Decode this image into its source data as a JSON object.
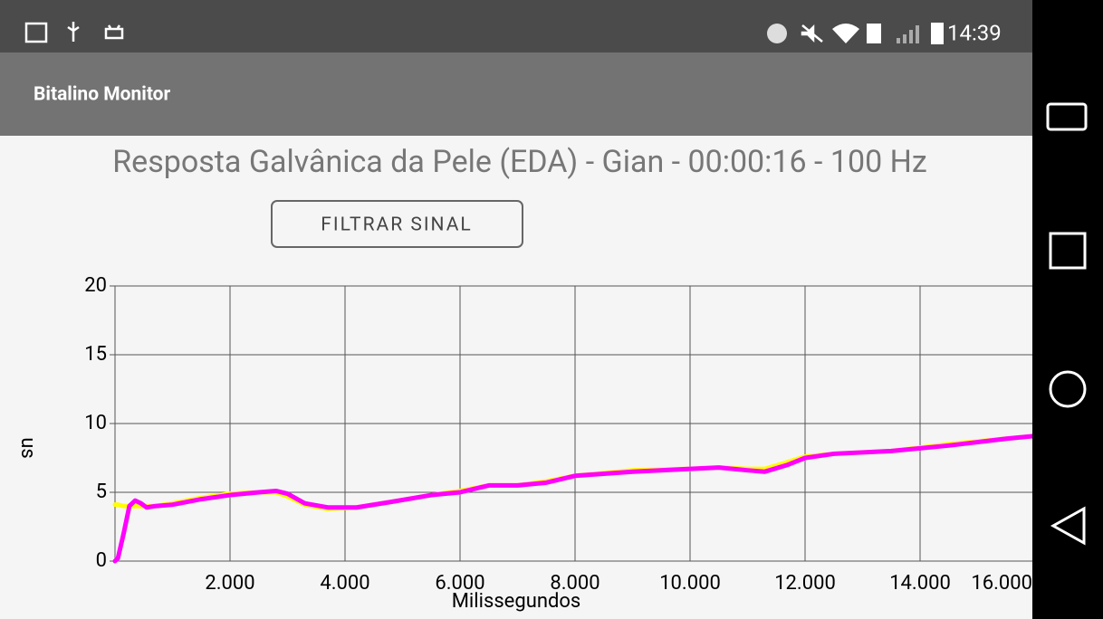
{
  "status_bar": {
    "time": "14:39"
  },
  "app_bar": {
    "title": "Bitalino Monitor"
  },
  "button": {
    "label": "FILTRAR SINAL"
  },
  "chart_data": {
    "type": "line",
    "title": "Resposta Galvânica da Pele (EDA) - Gian - 00:00:16 - 100 Hz",
    "xlabel": "Milissegundos",
    "ylabel": "us",
    "x": [
      0,
      50,
      150,
      250,
      350,
      450,
      550,
      700,
      1000,
      1500,
      2000,
      2500,
      2800,
      3000,
      3300,
      3700,
      4200,
      4800,
      5500,
      6000,
      6500,
      7000,
      7500,
      8000,
      9000,
      10000,
      10500,
      11000,
      11300,
      11700,
      12000,
      12500,
      13500,
      14500,
      15500,
      16000
    ],
    "series": [
      {
        "color": "#ffff00",
        "values": [
          4.1,
          4.1,
          4.0,
          4.0,
          4.0,
          4.0,
          4.0,
          4.0,
          4.2,
          4.6,
          4.9,
          5.0,
          5.0,
          4.7,
          4.1,
          3.8,
          3.9,
          4.3,
          4.8,
          5.1,
          5.5,
          5.5,
          5.8,
          6.2,
          6.6,
          6.7,
          6.8,
          6.7,
          6.7,
          7.2,
          7.6,
          7.8,
          8.0,
          8.5,
          8.9,
          9.1
        ]
      },
      {
        "color": "#ff00ff",
        "values": [
          0,
          0.2,
          2,
          4,
          4.4,
          4.2,
          3.9,
          4.0,
          4.1,
          4.5,
          4.8,
          5.0,
          5.1,
          4.9,
          4.2,
          3.9,
          3.9,
          4.3,
          4.8,
          5.0,
          5.5,
          5.5,
          5.7,
          6.2,
          6.5,
          6.7,
          6.8,
          6.6,
          6.5,
          7.0,
          7.5,
          7.8,
          8.0,
          8.4,
          8.9,
          9.1
        ]
      }
    ],
    "xlim": [
      0,
      16000
    ],
    "xticks": [
      {
        "value": 2000,
        "label": "2.000"
      },
      {
        "value": 4000,
        "label": "4.000"
      },
      {
        "value": 6000,
        "label": "6.000"
      },
      {
        "value": 8000,
        "label": "8.000"
      },
      {
        "value": 10000,
        "label": "10.000"
      },
      {
        "value": 12000,
        "label": "12.000"
      },
      {
        "value": 14000,
        "label": "14.000"
      },
      {
        "value": 16000,
        "label": "16.000"
      }
    ],
    "ylim": [
      0,
      20
    ],
    "yticks": [
      0,
      5,
      10,
      15,
      20
    ],
    "grid": true
  }
}
